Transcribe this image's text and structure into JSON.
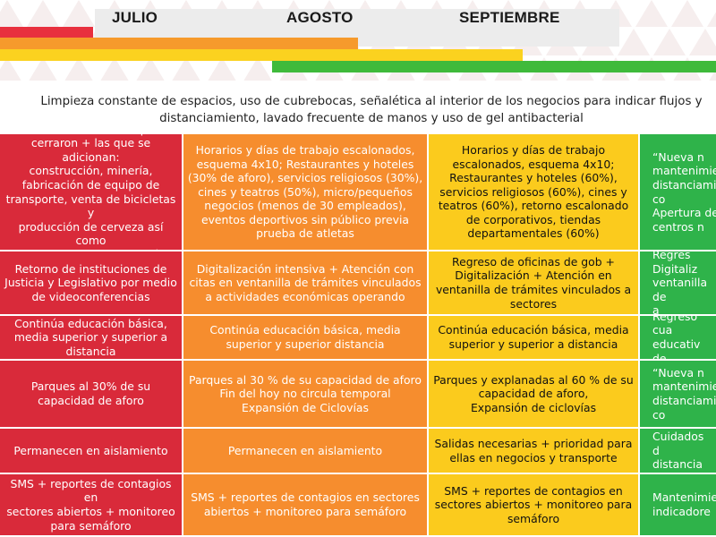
{
  "colors": {
    "red": "#d92a3a",
    "orange": "#f68d2e",
    "yellow": "#fbcb1d",
    "green": "#2fb34a"
  },
  "timeline": {
    "months": [
      "JULIO",
      "AGOSTO",
      "SEPTIEMBRE"
    ],
    "bars": [
      {
        "color": "#e8303e",
        "start": 0.0,
        "end": 0.13
      },
      {
        "color": "#f69a2c",
        "start": 0.0,
        "end": 0.5
      },
      {
        "color": "#fbd21f",
        "start": 0.0,
        "end": 0.73
      },
      {
        "color": "#3fba3b",
        "start": 0.38,
        "end": 1.0
      }
    ]
  },
  "intro_text": "Limpieza constante de espacios, uso de cubrebocas, señalética al interior de los negocios para indicar flujos y\ndistanciamiento, lavado frecuente de manos y uso de gel antibacterial",
  "rows": [
    {
      "cells": [
        "Actividades esenciales que no\ncerraron + las que se adicionan:\nconstrucción, minería,\nfabricación de equipo de\ntransporte, venta de bicicletas y\nproducción de cerveza así como\nsus cadenas de producción",
        "Horarios y días de trabajo escalonados,\nesquema 4x10; Restaurantes y hoteles\n(30% de aforo), servicios religiosos (30%),\ncines y teatros (50%), micro/pequeños\nnegocios (menos de 30 empleados),\neventos deportivos sin público previa\nprueba de atletas",
        "Horarios y días de trabajo\nescalonados, esquema 4x10;\nRestaurantes y hoteles (60%),\nservicios religiosos (60%), cines y\nteatros (60%), retorno escalonado\nde corporativos, tiendas\ndepartamentales (60%)",
        "“Nueva n\nmantenimie\ndistanciamie\nco\nApertura de\ncentros n"
      ]
    },
    {
      "cells": [
        "Retorno de instituciones de\nJusticia y Legislativo por medio\nde videoconferencias",
        "Digitalización intensiva + Atención con\ncitas en ventanilla de trámites vinculados\na actividades económicas operando",
        "Regreso de oficinas de gob +\nDigitalización + Atención en\nventanilla de trámites vinculados a\nsectores",
        "Regres\nDigitaliz\nventanilla de\na"
      ]
    },
    {
      "cells": [
        "Continúa educación básica,\nmedia superior y superior  a\ndistancia",
        "Continúa educación básica, media\nsuperior y superior distancia",
        "Continúa educación básica, media\nsuperior y superior a distancia",
        "Regreso cua\neducativ\nde"
      ]
    },
    {
      "cells": [
        "Parques al 30% de su\ncapacidad de aforo",
        "Parques al 30 % de su capacidad de aforo\nFin del hoy no circula temporal\nExpansión de Ciclovías",
        "Parques y explanadas al 60 % de su\ncapacidad de aforo,\nExpansión de ciclovías",
        "“Nueva n\nmantenimie\ndistanciamie\nco"
      ]
    },
    {
      "cells": [
        "Permanecen en aislamiento",
        "Permanecen en aislamiento",
        "Salidas necesarias + prioridad para\nellas en negocios y transporte",
        "Cuidados d\ndistancia"
      ]
    },
    {
      "cells": [
        "SMS + reportes de contagios en\nsectores abiertos + monitoreo\npara semáforo",
        "SMS + reportes de contagios en sectores\nabiertos + monitoreo para semáforo",
        "SMS + reportes de contagios en\nsectores abiertos + monitoreo para\nsemáforo",
        "Mantenimie\nindicadore"
      ]
    }
  ]
}
